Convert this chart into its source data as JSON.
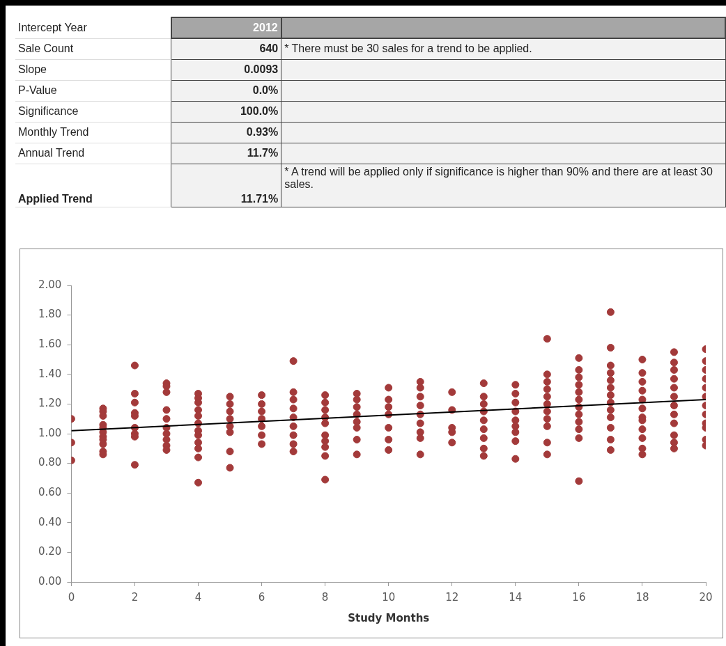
{
  "chart_data": {
    "type": "scatter",
    "xlabel": "Study Months",
    "annotations": [
      "Intercept Year",
      "2012",
      "Sale Count",
      "640",
      "* There must be 30 sales for a trend to be applied.",
      "Slope",
      "0.0093",
      "P-Value",
      "0.0%",
      "Significance",
      "100.0%",
      "Monthly Trend",
      "0.93%",
      "Annual Trend",
      "11.7%",
      "Applied Trend",
      "11.71%",
      "* A trend will be applied only if significance is higher than 90% and there are at least 30 sales."
    ],
    "xlim": [
      0,
      20
    ],
    "xticks": [
      0,
      2,
      4,
      6,
      8,
      10,
      12,
      14,
      16,
      18,
      20
    ],
    "ylim": [
      0,
      2
    ],
    "yticks": [
      {
        "value": 0,
        "label": "0.00"
      },
      {
        "value": 0.2,
        "label": "0.20"
      },
      {
        "value": 0.4,
        "label": "0.40"
      },
      {
        "value": 0.6,
        "label": "0.60"
      },
      {
        "value": 0.8,
        "label": "0.80"
      },
      {
        "value": 1,
        "label": "1.00"
      },
      {
        "value": 1.2,
        "label": "1.20"
      },
      {
        "value": 1.4,
        "label": "1.40"
      },
      {
        "value": 1.6,
        "label": "1.60"
      },
      {
        "value": 1.8,
        "label": "1.80"
      },
      {
        "value": 2,
        "label": "2.00"
      }
    ],
    "grid": false,
    "legend": false,
    "series": [
      {
        "type": "scatter",
        "color": "#a33a3a",
        "marker": "circle",
        "x": [
          0,
          0,
          0,
          1,
          1,
          1,
          1,
          1,
          1,
          1,
          1,
          1,
          1,
          1,
          2,
          2,
          2,
          2,
          2,
          2,
          2,
          2,
          2,
          3,
          3,
          3,
          3,
          3,
          3,
          3,
          3,
          3,
          3,
          4,
          4,
          4,
          4,
          4,
          4,
          4,
          4,
          4,
          4,
          4,
          4,
          5,
          5,
          5,
          5,
          5,
          5,
          5,
          5,
          6,
          6,
          6,
          6,
          6,
          6,
          6,
          7,
          7,
          7,
          7,
          7,
          7,
          7,
          7,
          7,
          8,
          8,
          8,
          8,
          8,
          8,
          8,
          8,
          8,
          8,
          9,
          9,
          9,
          9,
          9,
          9,
          9,
          9,
          10,
          10,
          10,
          10,
          10,
          10,
          10,
          11,
          11,
          11,
          11,
          11,
          11,
          11,
          11,
          11,
          12,
          12,
          12,
          12,
          12,
          13,
          13,
          13,
          13,
          13,
          13,
          13,
          13,
          13,
          14,
          14,
          14,
          14,
          14,
          14,
          14,
          14,
          14,
          15,
          15,
          15,
          15,
          15,
          15,
          15,
          15,
          15,
          15,
          15,
          16,
          16,
          16,
          16,
          16,
          16,
          16,
          16,
          16,
          16,
          16,
          16,
          17,
          17,
          17,
          17,
          17,
          17,
          17,
          17,
          17,
          17,
          17,
          17,
          17,
          18,
          18,
          18,
          18,
          18,
          18,
          18,
          18,
          18,
          18,
          18,
          18,
          19,
          19,
          19,
          19,
          19,
          19,
          19,
          19,
          19,
          19,
          19,
          19,
          20,
          20,
          20,
          20,
          20,
          20,
          20,
          20,
          20,
          20,
          20,
          20
        ],
        "values": [
          1.1,
          0.94,
          0.82,
          1.17,
          1.15,
          1.12,
          1.06,
          1.04,
          1.01,
          0.98,
          0.96,
          0.93,
          0.88,
          0.86,
          1.46,
          1.27,
          1.21,
          1.14,
          1.12,
          1.04,
          1.0,
          0.98,
          0.79,
          1.34,
          1.32,
          1.28,
          1.16,
          1.1,
          1.04,
          1.0,
          0.96,
          0.92,
          0.89,
          1.27,
          1.24,
          1.21,
          1.16,
          1.12,
          1.07,
          1.02,
          0.99,
          0.94,
          0.9,
          0.84,
          0.67,
          1.25,
          1.2,
          1.15,
          1.1,
          1.05,
          1.01,
          0.88,
          0.77,
          1.26,
          1.2,
          1.15,
          1.1,
          1.05,
          0.99,
          0.93,
          1.49,
          1.28,
          1.23,
          1.17,
          1.11,
          1.05,
          0.99,
          0.93,
          0.88,
          1.26,
          1.21,
          1.16,
          1.11,
          1.07,
          0.99,
          0.95,
          0.91,
          0.85,
          0.69,
          1.27,
          1.23,
          1.18,
          1.13,
          1.08,
          1.04,
          0.96,
          0.86,
          1.31,
          1.23,
          1.18,
          1.13,
          1.04,
          0.96,
          0.89,
          1.35,
          1.31,
          1.25,
          1.19,
          1.13,
          1.07,
          1.01,
          0.97,
          0.86,
          1.28,
          1.16,
          1.04,
          1.01,
          0.94,
          1.34,
          1.25,
          1.2,
          1.15,
          1.09,
          1.03,
          0.97,
          0.9,
          0.85,
          1.33,
          1.27,
          1.21,
          1.15,
          1.09,
          1.05,
          1.01,
          0.95,
          0.83,
          1.64,
          1.4,
          1.35,
          1.3,
          1.25,
          1.2,
          1.15,
          1.1,
          1.05,
          0.94,
          0.86,
          1.51,
          1.43,
          1.38,
          1.33,
          1.28,
          1.23,
          1.18,
          1.13,
          1.08,
          1.03,
          0.97,
          0.68,
          1.82,
          1.58,
          1.46,
          1.41,
          1.36,
          1.31,
          1.26,
          1.21,
          1.16,
          1.11,
          1.04,
          0.96,
          0.89,
          1.5,
          1.41,
          1.35,
          1.29,
          1.23,
          1.17,
          1.11,
          1.09,
          1.03,
          0.97,
          0.9,
          0.86,
          1.55,
          1.48,
          1.43,
          1.37,
          1.31,
          1.25,
          1.19,
          1.13,
          1.07,
          0.99,
          0.94,
          0.9,
          1.57,
          1.49,
          1.43,
          1.37,
          1.31,
          1.25,
          1.19,
          1.13,
          1.07,
          1.04,
          0.96,
          0.92
        ]
      },
      {
        "type": "line",
        "color": "#000000",
        "x": [
          0,
          20
        ],
        "values": [
          1.02,
          1.23
        ]
      }
    ]
  }
}
